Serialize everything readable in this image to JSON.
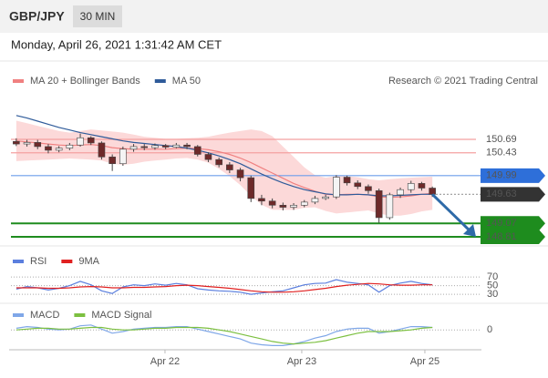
{
  "header": {
    "symbol": "GBP/JPY",
    "timeframe": "30 MIN",
    "datetime": "Monday, April 26, 2021 1:31:42 AM CET"
  },
  "chart_data": [
    {
      "type": "candlestick",
      "source": "Research © 2021 Trading Central",
      "xlim": [
        0,
        40
      ],
      "ylim": [
        148.67,
        151.62
      ],
      "up_color": "#f4f4f4",
      "down_color": "#6e2a2a",
      "edge_color": "#444444",
      "candles": {
        "open": [
          150.65,
          150.6,
          150.63,
          150.55,
          150.48,
          150.52,
          150.58,
          150.72,
          150.62,
          150.35,
          150.22,
          150.5,
          150.55,
          150.53,
          150.57,
          150.54,
          150.58,
          150.55,
          150.4,
          150.3,
          150.2,
          150.1,
          149.95,
          149.55,
          149.5,
          149.42,
          149.38,
          149.42,
          149.48,
          149.55,
          149.58,
          149.96,
          149.85,
          149.78,
          149.7,
          149.18,
          149.62,
          149.72,
          149.84,
          149.75
        ],
        "high": [
          150.71,
          150.68,
          150.68,
          150.6,
          150.56,
          150.62,
          150.8,
          150.75,
          150.65,
          150.4,
          150.55,
          150.6,
          150.6,
          150.61,
          150.6,
          150.62,
          150.62,
          150.58,
          150.44,
          150.34,
          150.25,
          150.14,
          149.99,
          149.62,
          149.55,
          149.47,
          149.46,
          149.52,
          149.6,
          149.62,
          150.0,
          149.99,
          149.9,
          149.82,
          149.74,
          149.66,
          149.76,
          149.89,
          149.87,
          149.78
        ],
        "low": [
          150.56,
          150.55,
          150.5,
          150.42,
          150.44,
          150.48,
          150.55,
          150.58,
          150.3,
          150.08,
          150.18,
          150.45,
          150.48,
          150.49,
          150.5,
          150.52,
          150.5,
          150.36,
          150.25,
          150.15,
          150.04,
          149.88,
          149.48,
          149.42,
          149.36,
          149.32,
          149.33,
          149.38,
          149.44,
          149.52,
          149.54,
          149.8,
          149.73,
          149.64,
          149.08,
          149.14,
          149.56,
          149.66,
          149.7,
          149.58
        ],
        "close": [
          150.6,
          150.63,
          150.55,
          150.48,
          150.52,
          150.58,
          150.72,
          150.62,
          150.35,
          150.22,
          150.5,
          150.55,
          150.53,
          150.57,
          150.54,
          150.58,
          150.55,
          150.4,
          150.3,
          150.2,
          150.1,
          149.95,
          149.55,
          149.5,
          149.42,
          149.38,
          149.42,
          149.48,
          149.55,
          149.58,
          149.96,
          149.85,
          149.78,
          149.7,
          149.18,
          149.62,
          149.72,
          149.84,
          149.75,
          149.63
        ]
      },
      "series": [
        {
          "name": "MA 20 + Bollinger Bands",
          "color": "#f08080",
          "band_color": "#fcd9d9",
          "values": [
            150.66,
            150.64,
            150.62,
            150.6,
            150.58,
            150.57,
            150.58,
            150.59,
            150.57,
            150.53,
            150.51,
            150.5,
            150.5,
            150.5,
            150.5,
            150.51,
            150.52,
            150.51,
            150.49,
            150.45,
            150.4,
            150.33,
            150.24,
            150.14,
            150.04,
            149.94,
            149.84,
            149.76,
            149.69,
            149.63,
            149.62,
            149.63,
            149.63,
            149.62,
            149.58,
            149.57,
            149.58,
            149.6,
            149.63,
            149.65
          ],
          "band_upper": [
            151.05,
            151.0,
            150.95,
            150.9,
            150.85,
            150.82,
            150.85,
            150.88,
            150.86,
            150.84,
            150.82,
            150.78,
            150.74,
            150.72,
            150.7,
            150.7,
            150.71,
            150.72,
            150.74,
            150.78,
            150.82,
            150.85,
            150.88,
            150.85,
            150.75,
            150.55,
            150.35,
            150.15,
            150.0,
            149.95,
            149.98,
            149.98,
            149.96,
            149.92,
            149.9,
            149.92,
            149.94,
            149.95,
            149.96,
            149.97
          ],
          "band_lower": [
            150.27,
            150.28,
            150.29,
            150.3,
            150.31,
            150.32,
            150.31,
            150.3,
            150.28,
            150.22,
            150.2,
            150.22,
            150.26,
            150.28,
            150.3,
            150.32,
            150.33,
            150.3,
            150.24,
            150.12,
            149.98,
            149.81,
            149.6,
            149.43,
            149.33,
            149.33,
            149.33,
            149.37,
            149.38,
            149.31,
            149.26,
            149.28,
            149.3,
            149.32,
            149.26,
            149.22,
            149.22,
            149.25,
            149.3,
            149.33
          ]
        },
        {
          "name": "MA 50",
          "color": "#2f5b9a",
          "values": [
            151.15,
            151.1,
            151.04,
            150.98,
            150.92,
            150.87,
            150.82,
            150.78,
            150.74,
            150.7,
            150.66,
            150.63,
            150.61,
            150.59,
            150.57,
            150.55,
            150.52,
            150.48,
            150.43,
            150.37,
            150.3,
            150.22,
            150.12,
            150.02,
            149.93,
            149.85,
            149.78,
            149.72,
            149.68,
            149.64,
            149.62,
            149.62,
            149.63,
            149.62,
            149.6,
            149.6,
            149.61,
            149.62,
            149.63,
            149.63
          ]
        }
      ],
      "levels": [
        {
          "value": 150.69,
          "color": "#f4a0a0",
          "label_style": "text",
          "text_color": "#e03030"
        },
        {
          "value": 150.43,
          "color": "#f4a0a0",
          "label_style": "text",
          "text_color": "#e03030"
        },
        {
          "value": 149.99,
          "color": "#6d9eea",
          "label_style": "box",
          "text_color": "#ffffff",
          "box_color": "#2e6fd9"
        },
        {
          "value": 149.63,
          "color": "#999999",
          "label_style": "box",
          "text_color": "#ffffff",
          "box_color": "#333333",
          "dashed": true
        },
        {
          "value": 149.07,
          "color": "#1e8c1e",
          "label_style": "box",
          "text_color": "#ffffff",
          "box_color": "#1e8c1e"
        },
        {
          "value": 148.81,
          "color": "#1e8c1e",
          "label_style": "box",
          "text_color": "#ffffff",
          "box_color": "#1e8c1e"
        }
      ],
      "forecast_color": "#2e6aa8"
    },
    {
      "type": "line",
      "xlim": [
        0,
        40
      ],
      "ylim": [
        24,
        87
      ],
      "yticks": [
        30,
        50,
        70
      ],
      "grid": true,
      "series": [
        {
          "name": "RSI",
          "color": "#5b7fde",
          "values": [
            42,
            48,
            45,
            40,
            44,
            50,
            60,
            52,
            38,
            32,
            47,
            52,
            50,
            54,
            51,
            55,
            52,
            43,
            40,
            38,
            37,
            35,
            30,
            33,
            36,
            38,
            45,
            52,
            55,
            56,
            64,
            58,
            55,
            52,
            35,
            50,
            56,
            60,
            55,
            52
          ]
        },
        {
          "name": "9MA",
          "color": "#e02020",
          "values": [
            45,
            45,
            45,
            44,
            44,
            45,
            47,
            48,
            47,
            45,
            45,
            46,
            46,
            47,
            48,
            50,
            51,
            50,
            48,
            46,
            44,
            41,
            38,
            36,
            35,
            35,
            36,
            38,
            41,
            44,
            48,
            51,
            53,
            55,
            54,
            52,
            51,
            51,
            52,
            52
          ]
        }
      ]
    },
    {
      "type": "line",
      "xlim": [
        0,
        40
      ],
      "ylim": [
        -0.23,
        0.19
      ],
      "yticks": [
        0
      ],
      "grid": true,
      "xticks": [
        {
          "value": 14.44,
          "label": "Apr 22"
        },
        {
          "value": 27.26,
          "label": "Apr 23"
        },
        {
          "value": 38.8,
          "label": "Apr 25"
        }
      ],
      "series": [
        {
          "name": "MACD",
          "color": "#7fa7e8",
          "values": [
            0.02,
            0.04,
            0.03,
            0.01,
            0.0,
            0.01,
            0.05,
            0.06,
            0.01,
            -0.04,
            -0.02,
            0.01,
            0.02,
            0.03,
            0.03,
            0.04,
            0.04,
            0.01,
            -0.02,
            -0.05,
            -0.08,
            -0.11,
            -0.16,
            -0.18,
            -0.19,
            -0.19,
            -0.17,
            -0.14,
            -0.1,
            -0.07,
            -0.02,
            0.01,
            0.02,
            0.02,
            -0.04,
            -0.02,
            0.01,
            0.04,
            0.04,
            0.03
          ]
        },
        {
          "name": "MACD Signal",
          "color": "#7cc040",
          "values": [
            0.0,
            0.01,
            0.02,
            0.02,
            0.01,
            0.01,
            0.02,
            0.03,
            0.03,
            0.01,
            0.0,
            0.0,
            0.01,
            0.02,
            0.02,
            0.03,
            0.03,
            0.03,
            0.02,
            0.0,
            -0.02,
            -0.05,
            -0.08,
            -0.11,
            -0.14,
            -0.16,
            -0.17,
            -0.16,
            -0.15,
            -0.13,
            -0.1,
            -0.07,
            -0.04,
            -0.02,
            -0.02,
            -0.02,
            -0.01,
            0.0,
            0.02,
            0.03
          ]
        }
      ]
    }
  ]
}
